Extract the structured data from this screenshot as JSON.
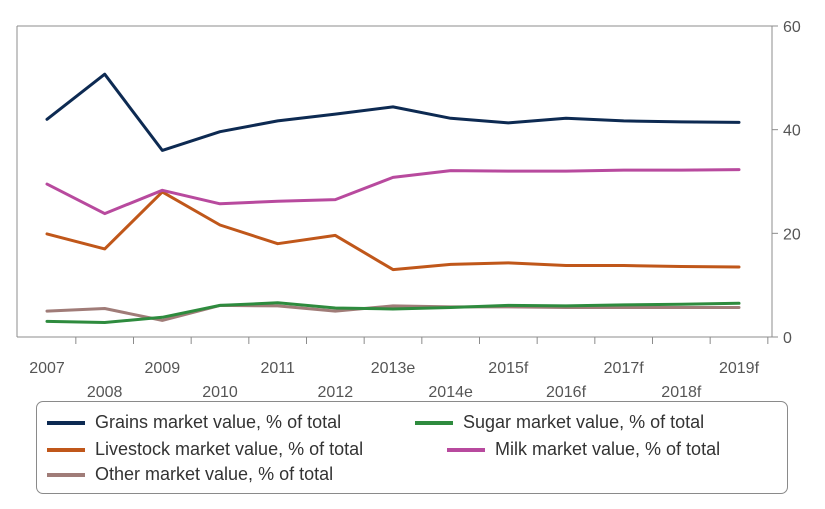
{
  "chart_data": {
    "type": "line",
    "categories": [
      "2007",
      "2008",
      "2009",
      "2010",
      "2011",
      "2012",
      "2013e",
      "2014e",
      "2015f",
      "2016f",
      "2017f",
      "2018f",
      "2019f"
    ],
    "y_axis": {
      "position": "right",
      "ylim": [
        0,
        60
      ],
      "ticks": [
        "0",
        "20",
        "40",
        "60"
      ]
    },
    "series": [
      {
        "name": "Grains market value, % of total",
        "color": "#0d2a52",
        "values": [
          42,
          50.7,
          36,
          39.6,
          41.7,
          43,
          44.4,
          42.2,
          41.3,
          42.2,
          41.7,
          41.5,
          41.4
        ]
      },
      {
        "name": "Sugar market value, % of total",
        "color": "#2e8b3e",
        "values": [
          3,
          2.8,
          3.8,
          6.1,
          6.6,
          5.6,
          5.4,
          5.7,
          6.1,
          6.0,
          6.2,
          6.3,
          6.5
        ]
      },
      {
        "name": "Livestock market value, % of total",
        "color": "#c0571a",
        "values": [
          19.9,
          17,
          28,
          21.6,
          18,
          19.6,
          13,
          14,
          14.3,
          13.8,
          13.8,
          13.6,
          13.5
        ]
      },
      {
        "name": "Milk market value, % of total",
        "color": "#b84a9e",
        "values": [
          29.5,
          23.8,
          28.3,
          25.7,
          26.2,
          26.5,
          30.8,
          32.1,
          32.0,
          32.0,
          32.2,
          32.2,
          32.3
        ]
      },
      {
        "name": "Other market value, % of total",
        "color": "#a07c78",
        "values": [
          5,
          5.5,
          3.2,
          6.1,
          6.0,
          5.0,
          6.0,
          5.8,
          5.8,
          5.7,
          5.7,
          5.7,
          5.7
        ]
      }
    ]
  }
}
